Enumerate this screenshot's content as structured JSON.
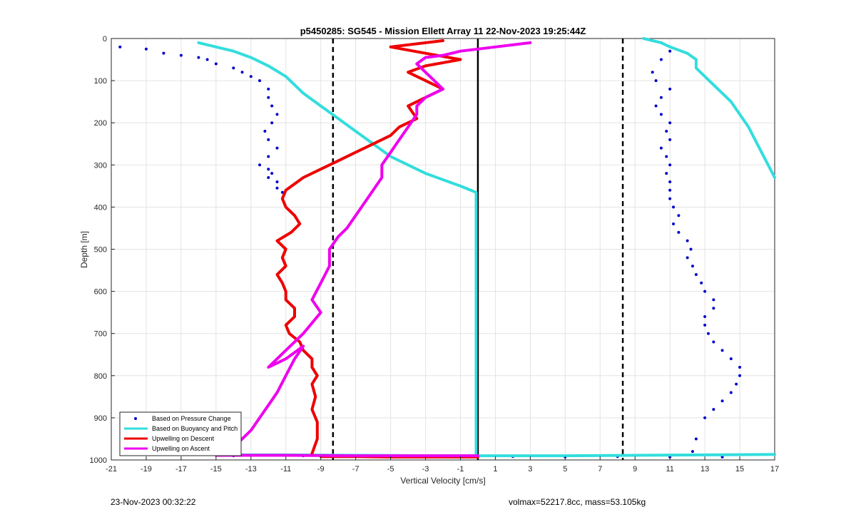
{
  "footer": {
    "timestamp": "23-Nov-2023 00:32:22",
    "vol_mass": "volmax=52217.8cc, mass=53.105kg"
  },
  "chart_data": {
    "type": "scatter",
    "title": "p5450285: SG545 - Mission Ellett Array 11 22-Nov-2023 19:25:44Z",
    "xlabel": "Vertical Velocity [cm/s]",
    "ylabel": "Depth [m]",
    "xlim": [
      -21,
      17
    ],
    "ylim": [
      1000,
      0
    ],
    "y_reversed": true,
    "grid": true,
    "legend_position": "bottom-left",
    "x_ticks": [
      -21,
      -19,
      -17,
      -15,
      -13,
      -11,
      -9,
      -7,
      -5,
      -3,
      -1,
      1,
      3,
      5,
      7,
      9,
      11,
      13,
      15,
      17
    ],
    "y_ticks": [
      0,
      100,
      200,
      300,
      400,
      500,
      600,
      700,
      800,
      900,
      1000
    ],
    "reference_lines": [
      {
        "x": -8.3,
        "style": "dashed",
        "color": "#000000"
      },
      {
        "x": 8.3,
        "style": "dashed",
        "color": "#000000"
      },
      {
        "x": 0,
        "style": "solid",
        "color": "#000000"
      }
    ],
    "series": [
      {
        "name": "Based on Pressure Change",
        "color": "#0000cc",
        "style": "markers",
        "segments": [
          {
            "x": [
              -20.5,
              -19,
              -18,
              -17,
              -16,
              -15.5,
              -15,
              -14,
              -13.5,
              -13,
              -12.5,
              -12,
              -12,
              -11.8,
              -11.5,
              -11.8,
              -12.2,
              -12,
              -11.5,
              -12,
              -12.5,
              -12,
              -11.8,
              -12,
              -11.5,
              -11.5,
              -11.2
            ],
            "y": [
              20,
              25,
              35,
              40,
              45,
              50,
              60,
              70,
              80,
              90,
              100,
              120,
              140,
              160,
              180,
              200,
              220,
              240,
              260,
              280,
              300,
              310,
              320,
              330,
              340,
              355,
              365
            ]
          },
          {
            "x": [
              10.5,
              11,
              10.5,
              10,
              10.2,
              11,
              10.5,
              10.2,
              10.5,
              11,
              10.8,
              11,
              10.5,
              10.8,
              11,
              10.8,
              11,
              11,
              11,
              11.2,
              11.5,
              11.2,
              11.5,
              12,
              12.2,
              12,
              12.3,
              12.5,
              12.8,
              13,
              13.5,
              13.5,
              13,
              13,
              13.2,
              13.5,
              14,
              14.5,
              15,
              15,
              14.8,
              14.5,
              14,
              13.5,
              13,
              12.5,
              12.3
            ],
            "y": [
              10,
              30,
              50,
              80,
              100,
              120,
              140,
              160,
              180,
              200,
              220,
              240,
              260,
              280,
              300,
              320,
              340,
              360,
              380,
              400,
              420,
              440,
              460,
              480,
              500,
              520,
              540,
              560,
              580,
              600,
              620,
              640,
              660,
              680,
              700,
              720,
              740,
              760,
              780,
              800,
              820,
              840,
              860,
              880,
              900,
              950,
              980
            ]
          },
          {
            "x": [
              -14,
              -10,
              -6,
              -2,
              2,
              5,
              8,
              11,
              14
            ],
            "y": [
              990,
              990,
              991,
              992,
              992,
              993,
              992,
              993,
              993
            ]
          }
        ]
      },
      {
        "name": "Based on Buoyancy and Pitch",
        "color": "#33dddd",
        "style": "line",
        "segments": [
          {
            "x": [
              -16,
              -15,
              -14,
              -13,
              -12,
              -11,
              -10.5,
              -10,
              -9,
              -8,
              -7,
              -6,
              -5,
              -4,
              -3,
              -2,
              -1,
              -0.3,
              -0.1,
              -0.1,
              -0.1,
              -0.1
            ],
            "y": [
              10,
              20,
              30,
              45,
              65,
              90,
              110,
              130,
              160,
              190,
              220,
              250,
              280,
              300,
              320,
              335,
              350,
              362,
              365,
              600,
              900,
              990
            ]
          },
          {
            "x": [
              -15,
              -11,
              -7,
              -3,
              1,
              5,
              9,
              13,
              17
            ],
            "y": [
              988,
              988,
              989,
              990,
              990,
              990,
              989,
              988,
              987
            ]
          },
          {
            "x": [
              9.5,
              10.5,
              11,
              12,
              12.5,
              12.5,
              13,
              13.5,
              14,
              14.5,
              15,
              15.5,
              16,
              16.5,
              17
            ],
            "y": [
              0,
              10,
              20,
              35,
              50,
              70,
              90,
              110,
              130,
              150,
              180,
              210,
              250,
              290,
              330
            ]
          }
        ]
      },
      {
        "name": "Upwelling on Descent",
        "color": "#ee0000",
        "style": "line",
        "segments": [
          {
            "x": [
              -2,
              -5,
              -3,
              -1,
              -3,
              -4,
              -3,
              -2,
              -3,
              -4,
              -3.5,
              -4.5,
              -5,
              -6,
              -7,
              -8,
              -9,
              -10,
              -11,
              -11.2,
              -11,
              -10.5,
              -10.2,
              -10.7,
              -11.5,
              -11,
              -11.2,
              -11,
              -11.5,
              -11.2,
              -11,
              -11,
              -10.5,
              -10.5,
              -11,
              -10.8,
              -10.2,
              -10,
              -9.5,
              -9.5,
              -9.2,
              -9.5,
              -9.3,
              -9.5,
              -9.2,
              -9.2,
              -9.5
            ],
            "y": [
              5,
              20,
              35,
              50,
              65,
              80,
              100,
              120,
              140,
              160,
              190,
              210,
              230,
              250,
              270,
              290,
              310,
              330,
              360,
              380,
              400,
              420,
              440,
              460,
              480,
              500,
              520,
              540,
              560,
              580,
              600,
              620,
              640,
              660,
              680,
              700,
              720,
              740,
              760,
              780,
              800,
              820,
              850,
              880,
              910,
              950,
              985
            ]
          },
          {
            "x": [
              -9,
              -7,
              -5,
              -3,
              -1,
              0
            ],
            "y": [
              992,
              992,
              993,
              993,
              993,
              993
            ]
          }
        ]
      },
      {
        "name": "Upwelling on Ascent",
        "color": "#ee00ee",
        "style": "line",
        "segments": [
          {
            "x": [
              -15.5,
              -14,
              -13,
              -12.5,
              -12,
              -11.5,
              -11,
              -10.5,
              -10,
              -11,
              -12,
              -11,
              -10,
              -9,
              -9.5,
              -9,
              -8.5,
              -8.5,
              -8,
              -7.5,
              -7,
              -6.5,
              -6,
              -5.5,
              -5.5,
              -5,
              -4.5,
              -4,
              -3.5,
              -3.5,
              -3,
              -2,
              -2.5,
              -3,
              -3.5,
              -3,
              -2,
              -1.5,
              -1,
              0,
              1,
              2,
              3
            ],
            "y": [
              985,
              970,
              930,
              900,
              870,
              840,
              800,
              760,
              730,
              760,
              780,
              740,
              700,
              650,
              620,
              580,
              540,
              500,
              470,
              450,
              420,
              390,
              360,
              330,
              300,
              270,
              240,
              210,
              180,
              160,
              140,
              120,
              100,
              80,
              60,
              45,
              40,
              35,
              30,
              25,
              20,
              15,
              10
            ]
          },
          {
            "x": [
              -15,
              -11,
              -7,
              -3,
              0
            ],
            "y": [
              989,
              989,
              990,
              990,
              990
            ]
          }
        ]
      }
    ]
  }
}
